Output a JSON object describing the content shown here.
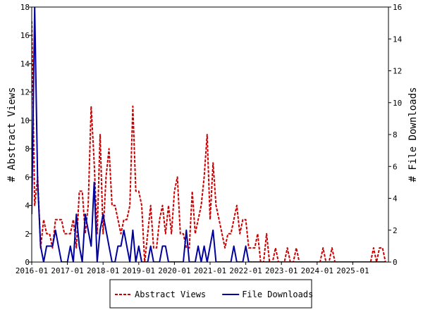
{
  "chart_data": {
    "type": "line",
    "xlabel": "",
    "ylabel_left": "# Abstract Views",
    "ylabel_right": "# File Downloads",
    "ylim_left": [
      0,
      18
    ],
    "ylim_right": [
      0,
      16
    ],
    "yticks_left": [
      0,
      2,
      4,
      6,
      8,
      10,
      12,
      14,
      16,
      18
    ],
    "yticks_right": [
      0,
      2,
      4,
      6,
      8,
      10,
      12,
      14,
      16
    ],
    "xlim": [
      "2016-01",
      "2025-12"
    ],
    "xticks": [
      "2016-01",
      "2017-01",
      "2018-01",
      "2019-01",
      "2020-01",
      "2021-01",
      "2022-01",
      "2023-01",
      "2024-01",
      "2025-01"
    ],
    "grid": false,
    "legend_position": "bottom",
    "series": [
      {
        "name": "Abstract Views",
        "axis": "left",
        "color": "#cc0000",
        "style": "dashed",
        "x": [
          "2016-01",
          "2016-02",
          "2016-03",
          "2016-04",
          "2016-05",
          "2016-06",
          "2016-07",
          "2016-08",
          "2016-09",
          "2016-10",
          "2016-11",
          "2016-12",
          "2017-01",
          "2017-02",
          "2017-03",
          "2017-04",
          "2017-05",
          "2017-06",
          "2017-07",
          "2017-08",
          "2017-09",
          "2017-10",
          "2017-11",
          "2017-12",
          "2018-01",
          "2018-02",
          "2018-03",
          "2018-04",
          "2018-05",
          "2018-06",
          "2018-07",
          "2018-08",
          "2018-09",
          "2018-10",
          "2018-11",
          "2018-12",
          "2019-01",
          "2019-02",
          "2019-03",
          "2019-04",
          "2019-05",
          "2019-06",
          "2019-07",
          "2019-08",
          "2019-09",
          "2019-10",
          "2019-11",
          "2019-12",
          "2020-01",
          "2020-02",
          "2020-03",
          "2020-04",
          "2020-05",
          "2020-06",
          "2020-07",
          "2020-08",
          "2020-09",
          "2020-10",
          "2020-11",
          "2020-12",
          "2021-01",
          "2021-02",
          "2021-03",
          "2021-04",
          "2021-05",
          "2021-06",
          "2021-07",
          "2021-08",
          "2021-09",
          "2021-10",
          "2021-11",
          "2021-12",
          "2022-01",
          "2022-02",
          "2022-03",
          "2022-04",
          "2022-05",
          "2022-06",
          "2022-07",
          "2022-08",
          "2022-09",
          "2022-10",
          "2022-11",
          "2022-12",
          "2023-01",
          "2023-02",
          "2023-03",
          "2023-04",
          "2023-05",
          "2023-06",
          "2023-07",
          "2023-08",
          "2023-09",
          "2023-10",
          "2023-11",
          "2023-12",
          "2024-01",
          "2024-02",
          "2024-03",
          "2024-04",
          "2024-05",
          "2024-06",
          "2024-07",
          "2024-08",
          "2024-09",
          "2024-10",
          "2024-11",
          "2024-12",
          "2025-01",
          "2025-02",
          "2025-03",
          "2025-04",
          "2025-05",
          "2025-06",
          "2025-07",
          "2025-08",
          "2025-09",
          "2025-10",
          "2025-11",
          "2025-12"
        ],
        "y": [
          17,
          4,
          6,
          1,
          3,
          2,
          2,
          1,
          3,
          3,
          3,
          2,
          2,
          2,
          3,
          1,
          5,
          5,
          2,
          4,
          11,
          7,
          2,
          9,
          2,
          6,
          8,
          4,
          4,
          3,
          2,
          3,
          3,
          4,
          11,
          5,
          5,
          4,
          0,
          2,
          4,
          1,
          1,
          3,
          4,
          2,
          4,
          2,
          5,
          6,
          2,
          2,
          1,
          1,
          5,
          2,
          3,
          4,
          6,
          9,
          3,
          7,
          4,
          3,
          2,
          1,
          2,
          2,
          3,
          4,
          2,
          3,
          3,
          1,
          1,
          1,
          2,
          0,
          0,
          2,
          0,
          0,
          1,
          0,
          0,
          0,
          1,
          0,
          0,
          1,
          0,
          0,
          0,
          0,
          0,
          0,
          0,
          0,
          1,
          0,
          0,
          1,
          0,
          0,
          0,
          0,
          0,
          0,
          0,
          0,
          0,
          0,
          0,
          0,
          0,
          1,
          0,
          1,
          1,
          0
        ],
        "y_note_none": ""
      },
      {
        "name": "File Downloads",
        "axis": "right",
        "color": "#00009c",
        "style": "solid",
        "x": [
          "2016-01",
          "2016-02",
          "2016-03",
          "2016-04",
          "2016-05",
          "2016-06",
          "2016-07",
          "2016-08",
          "2016-09",
          "2016-10",
          "2016-11",
          "2016-12",
          "2017-01",
          "2017-02",
          "2017-03",
          "2017-04",
          "2017-05",
          "2017-06",
          "2017-07",
          "2017-08",
          "2017-09",
          "2017-10",
          "2017-11",
          "2017-12",
          "2018-01",
          "2018-02",
          "2018-03",
          "2018-04",
          "2018-05",
          "2018-06",
          "2018-07",
          "2018-08",
          "2018-09",
          "2018-10",
          "2018-11",
          "2018-12",
          "2019-01",
          "2019-02",
          "2019-03",
          "2019-04",
          "2019-05",
          "2019-06",
          "2019-07",
          "2019-08",
          "2019-09",
          "2019-10",
          "2019-11",
          "2019-12",
          "2020-01",
          "2020-02",
          "2020-03",
          "2020-04",
          "2020-05",
          "2020-06",
          "2020-07",
          "2020-08",
          "2020-09",
          "2020-10",
          "2020-11",
          "2020-12",
          "2021-01",
          "2021-02",
          "2021-03",
          "2021-04",
          "2021-05",
          "2021-06",
          "2021-07",
          "2021-08",
          "2021-09",
          "2021-10",
          "2021-11",
          "2021-12",
          "2022-01",
          "2022-02",
          "2022-03",
          "2022-04",
          "2022-05",
          "2022-06",
          "2022-07",
          "2022-08",
          "2022-09",
          "2022-10",
          "2022-11",
          "2022-12",
          "2023-01",
          "2023-02",
          "2023-03",
          "2023-04",
          "2023-05",
          "2023-06",
          "2023-07",
          "2023-08",
          "2023-09",
          "2023-10",
          "2023-11",
          "2023-12",
          "2024-01",
          "2024-02",
          "2024-03",
          "2024-04",
          "2024-05",
          "2024-06",
          "2024-07",
          "2024-08",
          "2024-09",
          "2024-10",
          "2024-11",
          "2024-12",
          "2025-01",
          "2025-02",
          "2025-03",
          "2025-04",
          "2025-05",
          "2025-06",
          "2025-07",
          "2025-08",
          "2025-09",
          "2025-10",
          "2025-11",
          "2025-12"
        ],
        "y": [
          3,
          16,
          5,
          1,
          0,
          1,
          1,
          1,
          2,
          1,
          0,
          0,
          0,
          1,
          0,
          3,
          1,
          0,
          3,
          2,
          1,
          5,
          0,
          2,
          3,
          2,
          1,
          0,
          0,
          1,
          1,
          2,
          1,
          0,
          2,
          0,
          1,
          0,
          0,
          0,
          1,
          0,
          0,
          0,
          1,
          1,
          0,
          0,
          0,
          0,
          0,
          0,
          2,
          0,
          0,
          0,
          1,
          0,
          1,
          0,
          1,
          2,
          0,
          0,
          0,
          0,
          0,
          0,
          1,
          0,
          0,
          0,
          1,
          0,
          0,
          0,
          0,
          0,
          0,
          0,
          0,
          0,
          0,
          0,
          0,
          0,
          0,
          0,
          0,
          0,
          0,
          0,
          0,
          0,
          0,
          0,
          0,
          0,
          0,
          0,
          0,
          0,
          0,
          0,
          0,
          0,
          0,
          0,
          0,
          0,
          0,
          0,
          0,
          0,
          0,
          0,
          0,
          0,
          0,
          0
        ]
      }
    ]
  }
}
